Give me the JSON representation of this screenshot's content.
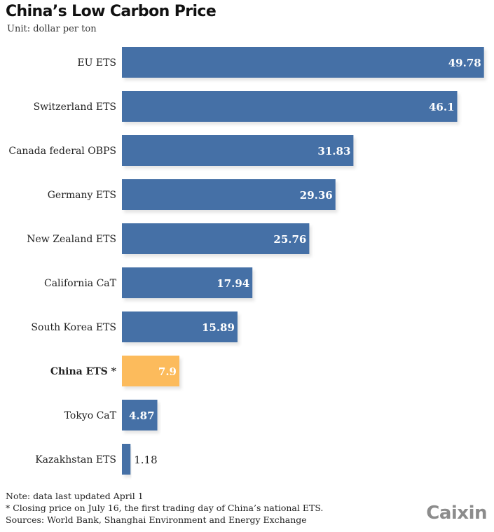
{
  "header": {
    "title": "China’s Low Carbon Price",
    "subtitle": "Unit: dollar per ton"
  },
  "chart_data": {
    "type": "bar",
    "orientation": "horizontal",
    "title": "China’s Low Carbon Price",
    "subtitle": "Unit: dollar per ton",
    "xlabel": "",
    "ylabel": "",
    "unit": "dollar per ton",
    "grid": false,
    "legend": "none",
    "xlim": [
      0,
      50
    ],
    "categories": [
      "EU ETS",
      "Switzerland ETS",
      "Canada federal OBPS",
      "Germany ETS",
      "New Zealand ETS",
      "California CaT",
      "South Korea ETS",
      "China ETS *",
      "Tokyo CaT",
      "Kazakhstan ETS"
    ],
    "values": [
      49.78,
      46.1,
      31.83,
      29.36,
      25.76,
      17.94,
      15.89,
      7.9,
      4.87,
      1.18
    ],
    "labels": [
      "49.78",
      "46.1",
      "31.83",
      "29.36",
      "25.76",
      "17.94",
      "15.89",
      "7.9",
      "4.87",
      "1.18"
    ],
    "highlight": "China ETS *",
    "colors": {
      "default": "#4570a6",
      "highlight": "#fcbb5c",
      "label_inside": "#ffffff",
      "label_outside": "#222222"
    }
  },
  "footer": {
    "note": "Note: data last updated April 1",
    "asterisk": "* Closing price on July 16, the first trading day of China’s national ETS.",
    "sources": "Sources: World Bank, Shanghai Environment and Energy Exchange"
  },
  "brand": {
    "logo": "Caixin"
  }
}
